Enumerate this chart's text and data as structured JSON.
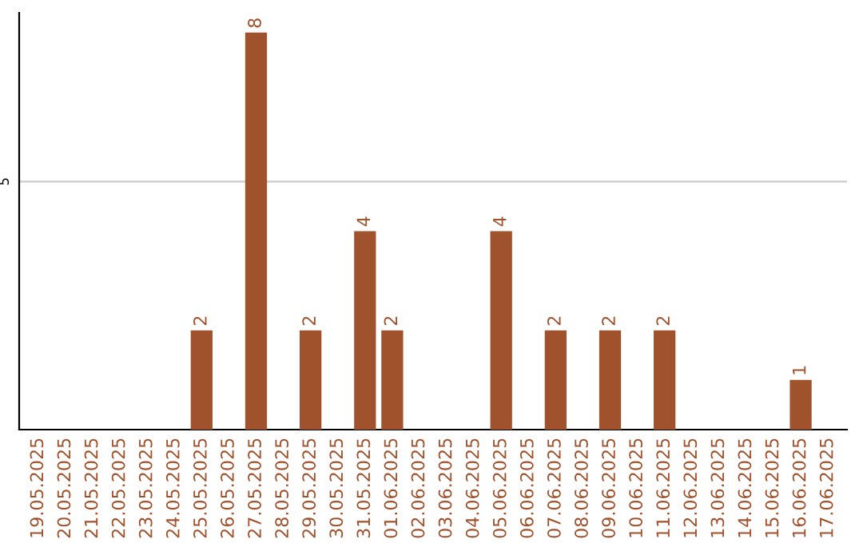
{
  "chart_data": {
    "type": "bar",
    "categories": [
      "19.05.2025",
      "20.05.2025",
      "21.05.2025",
      "22.05.2025",
      "23.05.2025",
      "24.05.2025",
      "25.05.2025",
      "26.05.2025",
      "27.05.2025",
      "28.05.2025",
      "29.05.2025",
      "30.05.2025",
      "31.05.2025",
      "01.06.2025",
      "02.06.2025",
      "03.06.2025",
      "04.06.2025",
      "05.06.2025",
      "06.06.2025",
      "07.06.2025",
      "08.06.2025",
      "09.06.2025",
      "10.06.2025",
      "11.06.2025",
      "12.06.2025",
      "13.06.2025",
      "14.06.2025",
      "15.06.2025",
      "16.06.2025",
      "17.06.2025"
    ],
    "values": [
      0,
      0,
      0,
      0,
      0,
      0,
      2,
      0,
      8,
      0,
      2,
      0,
      4,
      2,
      0,
      0,
      0,
      4,
      0,
      2,
      0,
      2,
      0,
      2,
      0,
      0,
      0,
      0,
      1,
      0
    ],
    "value_labels": [
      null,
      null,
      null,
      null,
      null,
      null,
      "2",
      null,
      "8",
      null,
      "2",
      null,
      "4",
      "2",
      null,
      null,
      null,
      "4",
      null,
      "2",
      null,
      "2",
      null,
      "2",
      null,
      null,
      null,
      null,
      "1",
      null
    ],
    "color": "#a0522d",
    "ylim": [
      0,
      8.4
    ],
    "yticks": [
      5
    ],
    "grid": "y"
  }
}
